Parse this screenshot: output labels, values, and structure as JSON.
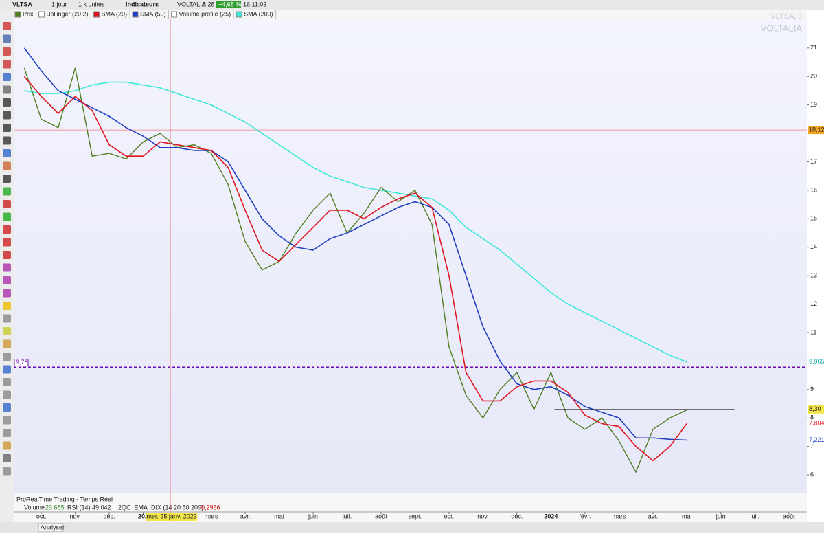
{
  "toolbar": {
    "symbol": "VLTSA",
    "period": "1 jour",
    "units": "1 k unités",
    "indicators": "Indicateurs",
    "name": "VOLTALIA",
    "price": "8,28",
    "change": "+4,68 %",
    "time": "16:11:03"
  },
  "watermark": {
    "symbol": "VLTSA, J",
    "name": "VOLTALIA"
  },
  "inactive_indicators": [
    "Bollinger (20 2)",
    "Volume profile (25)"
  ],
  "panel": {
    "title": "ProRealTime Trading - Temps Réel",
    "items": [
      "Volume",
      "23 685",
      "RSI (14) 49,042",
      "2QC_EMA_DIX (14 20 50 200)",
      "-0,2966"
    ]
  },
  "bottom_bar": {
    "button": "Analyser"
  },
  "chart_data": {
    "type": "line",
    "xlim": [
      -0.81,
      22.53
    ],
    "ylim": [
      5.35,
      22.01
    ],
    "xticks": [
      {
        "value": 0,
        "label": "oct."
      },
      {
        "value": 1,
        "label": "nov."
      },
      {
        "value": 2,
        "label": "déc."
      },
      {
        "value": 3,
        "label": "202"
      },
      {
        "value": 5,
        "label": "mars"
      },
      {
        "value": 6,
        "label": "avr."
      },
      {
        "value": 7,
        "label": "mai"
      },
      {
        "value": 8,
        "label": "juin"
      },
      {
        "value": 9,
        "label": "juil."
      },
      {
        "value": 10,
        "label": "août"
      },
      {
        "value": 11,
        "label": "sept."
      },
      {
        "value": 12,
        "label": "oct."
      },
      {
        "value": 13,
        "label": "nov."
      },
      {
        "value": 14,
        "label": "déc."
      },
      {
        "value": 15,
        "label": "2024"
      },
      {
        "value": 16,
        "label": "févr."
      },
      {
        "value": 17,
        "label": "mars"
      },
      {
        "value": 18,
        "label": "avr."
      },
      {
        "value": 19,
        "label": "mai"
      },
      {
        "value": 20,
        "label": "juin"
      },
      {
        "value": 21,
        "label": "juil."
      },
      {
        "value": 22,
        "label": "août"
      }
    ],
    "yticks": [
      6,
      7,
      8,
      9,
      11,
      12,
      13,
      14,
      15,
      16,
      17,
      19,
      20,
      21
    ],
    "x": [
      -0.5,
      0,
      0.5,
      1,
      1.5,
      2,
      2.5,
      3,
      3.5,
      4,
      4.5,
      5,
      5.5,
      6,
      6.5,
      7,
      7.5,
      8,
      8.5,
      9,
      9.5,
      10,
      10.5,
      11,
      11.5,
      12,
      12.5,
      13,
      13.5,
      14,
      14.5,
      15,
      15.5,
      16,
      16.5,
      17,
      17.5,
      18,
      18.5,
      19
    ],
    "series": [
      {
        "name": "Prix",
        "color": "#4f7d1f",
        "values": [
          20.3,
          18.5,
          18.2,
          20.3,
          17.2,
          17.3,
          17.1,
          17.7,
          18.0,
          17.5,
          17.6,
          17.3,
          16.2,
          14.2,
          13.2,
          13.5,
          14.5,
          15.3,
          15.9,
          14.5,
          15.2,
          16.1,
          15.6,
          16.0,
          14.8,
          10.5,
          8.8,
          8.0,
          9.0,
          9.6,
          8.3,
          9.6,
          8.0,
          7.6,
          8.0,
          7.2,
          6.1,
          7.6,
          8.0,
          8.28
        ]
      },
      {
        "name": "SMA (20)",
        "color": "#e0141e",
        "values": [
          20.0,
          19.3,
          18.7,
          19.3,
          18.8,
          17.6,
          17.2,
          17.2,
          17.7,
          17.6,
          17.5,
          17.4,
          16.8,
          15.3,
          13.9,
          13.5,
          14.1,
          14.7,
          15.3,
          15.3,
          15.0,
          15.4,
          15.7,
          15.9,
          15.4,
          13.0,
          9.6,
          8.6,
          8.6,
          9.1,
          9.3,
          9.3,
          8.9,
          8.1,
          7.8,
          7.7,
          7.0,
          6.5,
          7.0,
          7.8046
        ]
      },
      {
        "name": "SMA (50)",
        "color": "#1f3fc0",
        "values": [
          21.0,
          20.2,
          19.5,
          19.2,
          18.9,
          18.6,
          18.2,
          17.9,
          17.5,
          17.5,
          17.4,
          17.4,
          17.0,
          16.0,
          15.0,
          14.4,
          14.0,
          13.9,
          14.3,
          14.5,
          14.8,
          15.1,
          15.4,
          15.6,
          15.4,
          14.8,
          13.0,
          11.2,
          10.0,
          9.2,
          9.0,
          9.1,
          8.8,
          8.4,
          8.2,
          8.0,
          7.3,
          7.3,
          7.25,
          7.221
        ]
      },
      {
        "name": "SMA (200)",
        "color": "#3de8d8",
        "values": [
          19.5,
          19.4,
          19.4,
          19.5,
          19.7,
          19.8,
          19.8,
          19.7,
          19.6,
          19.4,
          19.2,
          19.0,
          18.7,
          18.4,
          18.0,
          17.6,
          17.2,
          16.8,
          16.5,
          16.3,
          16.1,
          16.0,
          15.9,
          15.8,
          15.7,
          15.3,
          14.7,
          14.3,
          13.9,
          13.4,
          12.9,
          12.4,
          12.0,
          11.7,
          11.4,
          11.1,
          10.8,
          10.5,
          10.2,
          9.965
        ]
      }
    ],
    "last_labels": [
      {
        "value": 8.3,
        "label": "8,30"
      },
      {
        "value": 7.8046,
        "label": "7,8046"
      },
      {
        "value": 7.221,
        "label": "7,221"
      },
      {
        "value": 9.965,
        "label": "9,965"
      }
    ],
    "level": {
      "value": 9.78,
      "label": "9,78",
      "color": "#6a0dad"
    },
    "trendline": {
      "x": [
        15.1,
        20.4
      ],
      "values": [
        8.3,
        8.3
      ]
    },
    "crosshair": {
      "x": 3.8,
      "value": 18.12,
      "label": "18,12",
      "date_label": "mer. 25 janv. 2023"
    }
  }
}
